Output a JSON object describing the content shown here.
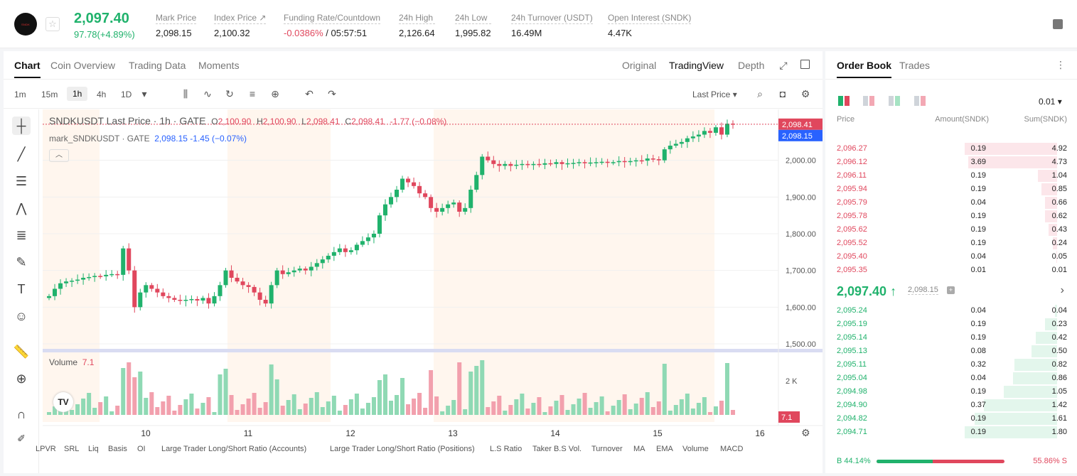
{
  "header": {
    "logo_text": "SNDK",
    "last_price": "2,097.40",
    "change": "97.78(+4.89%)",
    "stats": [
      {
        "label": "Mark Price",
        "value": "2,098.15"
      },
      {
        "label": "Index Price ↗",
        "value": "2,100.32"
      },
      {
        "label": "Funding Rate/Countdown",
        "value_red": "-0.0386%",
        "value": " / 05:57:51"
      },
      {
        "label": "24h High",
        "value": "2,126.64"
      },
      {
        "label": "24h Low",
        "value": "1,995.82"
      },
      {
        "label": "24h Turnover (USDT)",
        "value": "16.49M"
      },
      {
        "label": "Open Interest (SNDK)",
        "value": "4.47K"
      }
    ]
  },
  "chart_tabs": [
    "Chart",
    "Coin Overview",
    "Trading Data",
    "Moments"
  ],
  "view_tabs": [
    "Original",
    "TradingView",
    "Depth"
  ],
  "toolbar": {
    "intervals": [
      "1m",
      "15m",
      "1h",
      "4h",
      "1D"
    ],
    "last_price_select": "Last Price"
  },
  "legend": {
    "line1_title": "SNDKUSDT Last Price · 1h · GATE",
    "line1_o": "O",
    "line1_o_val": "2,100.90",
    "line1_h": "H",
    "line1_h_val": "2,100.90",
    "line1_l": "L",
    "line1_l_val": "2,098.41",
    "line1_c": "C",
    "line1_c_val": "2,098.41",
    "line1_chg": "-1.77 (−0.08%)",
    "line2_title": "mark_SNDKUSDT · GATE",
    "line2_vals": "2,098.15  -1.45 (−0.07%)",
    "volume_label": "Volume",
    "volume_value": "7.1"
  },
  "chart_data": {
    "type": "candlestick",
    "x_ticks": [
      "10",
      "11",
      "12",
      "13",
      "14",
      "15",
      "16"
    ],
    "y_ticks": [
      "2,000.00",
      "1,900.00",
      "1,800.00",
      "1,700.00",
      "1,600.00",
      "1,500.00"
    ],
    "ylim": [
      1500,
      2100
    ],
    "price_labels": {
      "last": "2,098.41",
      "mark": "2,098.15"
    },
    "volume_ticks": [
      "2 K"
    ],
    "volume_label": "7.1",
    "close_path": [
      1630,
      1650,
      1665,
      1670,
      1672,
      1675,
      1680,
      1682,
      1685,
      1684,
      1688,
      1690,
      1688,
      1760,
      1700,
      1600,
      1640,
      1660,
      1650,
      1640,
      1630,
      1625,
      1620,
      1618,
      1620,
      1622,
      1618,
      1625,
      1610,
      1630,
      1660,
      1700,
      1680,
      1670,
      1660,
      1655,
      1640,
      1620,
      1610,
      1660,
      1700,
      1690,
      1695,
      1700,
      1705,
      1700,
      1710,
      1720,
      1730,
      1740,
      1750,
      1760,
      1750,
      1755,
      1770,
      1780,
      1790,
      1800,
      1850,
      1880,
      1900,
      1920,
      1950,
      1940,
      1930,
      1910,
      1900,
      1870,
      1860,
      1870,
      1880,
      1885,
      1860,
      1870,
      1920,
      1960,
      2010,
      2000,
      1990,
      1985,
      1990,
      1985,
      1988,
      1990,
      1987,
      1990,
      1988,
      1992,
      1990,
      1995,
      1990,
      1992,
      1993,
      1995,
      1992,
      1994,
      1995,
      1996,
      1993,
      1995,
      1998,
      1996,
      1998,
      2000,
      1999,
      2005,
      2003,
      2000,
      2030,
      2040,
      2045,
      2050,
      2060,
      2065,
      2070,
      2080,
      2075,
      2090,
      2070,
      2100,
      2098
    ]
  },
  "bottom_indicators": [
    "LPVR",
    "SRL",
    "Liq",
    "Basis",
    "OI",
    "Large Trader Long/Short Ratio (Accounts)",
    "Large Trader Long/Short Ratio (Positions)",
    "L.S Ratio",
    "Taker B.S Vol.",
    "Turnover",
    "MA",
    "EMA",
    "Volume",
    "MACD"
  ],
  "orderbook": {
    "tabs": [
      "Order Book",
      "Trades"
    ],
    "precision": "0.01",
    "headers": [
      "Price",
      "Amount(SNDK)",
      "Sum(SNDK)"
    ],
    "asks": [
      {
        "price": "2,096.27",
        "amount": "0.19",
        "sum": "4.92",
        "depth": 1.0
      },
      {
        "price": "2,096.12",
        "amount": "3.69",
        "sum": "4.73",
        "depth": 0.96
      },
      {
        "price": "2,096.11",
        "amount": "0.19",
        "sum": "1.04",
        "depth": 0.21
      },
      {
        "price": "2,095.94",
        "amount": "0.19",
        "sum": "0.85",
        "depth": 0.17
      },
      {
        "price": "2,095.79",
        "amount": "0.04",
        "sum": "0.66",
        "depth": 0.13
      },
      {
        "price": "2,095.78",
        "amount": "0.19",
        "sum": "0.62",
        "depth": 0.13
      },
      {
        "price": "2,095.62",
        "amount": "0.19",
        "sum": "0.43",
        "depth": 0.09
      },
      {
        "price": "2,095.52",
        "amount": "0.19",
        "sum": "0.24",
        "depth": 0.05
      },
      {
        "price": "2,095.40",
        "amount": "0.04",
        "sum": "0.05",
        "depth": 0.01
      },
      {
        "price": "2,095.35",
        "amount": "0.01",
        "sum": "0.01",
        "depth": 0.0
      }
    ],
    "mid_price": "2,097.40 ↑",
    "mid_mark": "2,098.15",
    "bids": [
      {
        "price": "2,095.24",
        "amount": "0.04",
        "sum": "0.04",
        "depth": 0.02
      },
      {
        "price": "2,095.19",
        "amount": "0.19",
        "sum": "0.23",
        "depth": 0.13
      },
      {
        "price": "2,095.14",
        "amount": "0.19",
        "sum": "0.42",
        "depth": 0.23
      },
      {
        "price": "2,095.13",
        "amount": "0.08",
        "sum": "0.50",
        "depth": 0.28
      },
      {
        "price": "2,095.11",
        "amount": "0.32",
        "sum": "0.82",
        "depth": 0.46
      },
      {
        "price": "2,095.04",
        "amount": "0.04",
        "sum": "0.86",
        "depth": 0.48
      },
      {
        "price": "2,094.98",
        "amount": "0.19",
        "sum": "1.05",
        "depth": 0.58
      },
      {
        "price": "2,094.90",
        "amount": "0.37",
        "sum": "1.42",
        "depth": 0.79
      },
      {
        "price": "2,094.82",
        "amount": "0.19",
        "sum": "1.61",
        "depth": 0.89
      },
      {
        "price": "2,094.71",
        "amount": "0.19",
        "sum": "1.80",
        "depth": 1.0
      }
    ],
    "buy_ratio": "B 44.14%",
    "sell_ratio": "55.86% S",
    "buy_fraction": 0.4414
  },
  "colors": {
    "up": "#20b26c",
    "down": "#e0475d"
  }
}
